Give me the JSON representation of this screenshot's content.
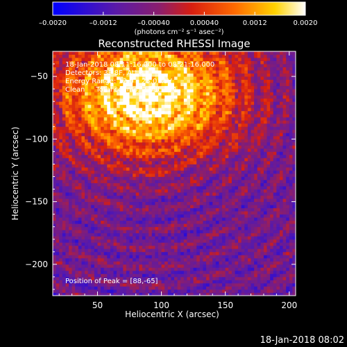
{
  "chart_data": {
    "type": "heatmap",
    "title": "Reconstructed RHESSI Image",
    "xlabel": "Heliocentric X (arcsec)",
    "ylabel": "Heliocentric Y (arcsec)",
    "xlim": [
      15,
      205
    ],
    "ylim": [
      -225,
      -30
    ],
    "x_ticks": [
      50,
      100,
      150,
      200
    ],
    "y_ticks": [
      -50,
      -100,
      -150,
      -200
    ],
    "colorbar": {
      "range": [
        -0.002,
        0.002
      ],
      "ticks": [
        -0.002,
        -0.0012,
        -0.0004,
        0.0004,
        0.0012,
        0.002
      ],
      "tick_labels": [
        "–0.0020",
        "–0.0012",
        "–0.00040",
        "0.00040",
        "0.0012",
        "0.0020"
      ],
      "units": "(photons cm⁻² s⁻¹ asec⁻²)",
      "colormap": "blue-purple-red-orange-yellow-white"
    },
    "annotations": [
      "18-Jan-2018 08:11:16.000 to 08:21:16.000",
      "Detectors: 3F 8F, Att 0",
      "Energy Range: 12.0 – 25.0 keV",
      "Clean     Total counts: 2.08E+04"
    ],
    "peak_label": "Position of Peak = [88,-65]",
    "peak": [
      88,
      -65
    ],
    "grid": false
  },
  "footer": {
    "timestamp": "18-Jan-2018 08:02"
  }
}
